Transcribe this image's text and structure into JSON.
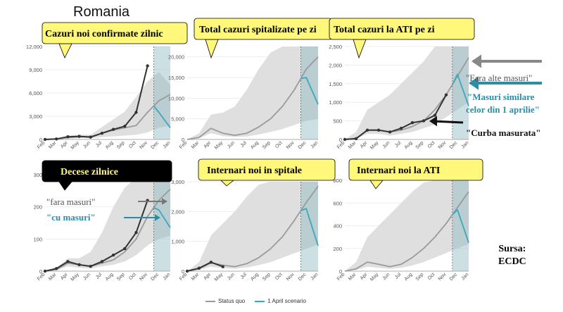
{
  "country_title": "Romania",
  "months": [
    "Feb",
    "Mar",
    "Apr",
    "May",
    "Jun",
    "Jul",
    "Aug",
    "Sep",
    "Oct",
    "Nov",
    "Dec",
    "Jan"
  ],
  "colors": {
    "status_quo": "#9a9a9a",
    "april_scenario": "#3aa9bf",
    "observed": "#222222",
    "band": "#d9d9d9",
    "callout_fill": "#fff87a"
  },
  "legend": {
    "status_quo": "Status quo",
    "april_scenario": "1 April scenario"
  },
  "source": {
    "line1": "Sursa:",
    "line2": "ECDC"
  },
  "notes": {
    "no_measures": "\"Fara alte masuri\"",
    "april_measures_1": "\"Masuri similare",
    "april_measures_2": "celor din 1 aprilie\"",
    "measured_curve": "\"Curba masurata\"",
    "no_measures_deaths": "\"fara masuri\"",
    "with_measures": "\"cu masuri\""
  },
  "chart_data": [
    {
      "id": "cases",
      "type": "line",
      "title": "Cazuri noi confirmate zilnic",
      "ylim": [
        0,
        12000
      ],
      "yticks": [
        0,
        3000,
        6000,
        9000,
        12000
      ],
      "yticklabels": [
        "0",
        "3,000",
        "6,000",
        "9,000",
        "12,000"
      ],
      "x": [
        "Feb",
        "Mar",
        "Apr",
        "May",
        "Jun",
        "Jul",
        "Aug",
        "Sep",
        "Oct",
        "Nov",
        "Dec",
        "Jan"
      ],
      "series": [
        {
          "key": "status_quo",
          "values": [
            0,
            50,
            250,
            350,
            350,
            800,
            1200,
            1500,
            1800,
            3500,
            5000,
            5800
          ]
        },
        {
          "key": "april_scenario",
          "values": [
            null,
            null,
            null,
            null,
            null,
            null,
            null,
            null,
            null,
            null,
            3500,
            1500
          ]
        },
        {
          "key": "observed",
          "values": [
            0,
            60,
            350,
            400,
            300,
            800,
            1300,
            1700,
            3500,
            9500,
            null,
            null
          ]
        }
      ],
      "band": {
        "lower": [
          0,
          0,
          100,
          150,
          150,
          300,
          400,
          500,
          600,
          900,
          1500,
          1800
        ],
        "upper": [
          0,
          100,
          500,
          600,
          600,
          1600,
          2600,
          3600,
          5500,
          7500,
          8700,
          7000
        ]
      },
      "scenario_start": "Nov"
    },
    {
      "id": "hosp",
      "type": "line",
      "title": "Total cazuri spitalizate pe zi",
      "ylim": [
        0,
        22500
      ],
      "yticks": [
        0,
        5000,
        10000,
        15000,
        20000
      ],
      "yticklabels": [
        "0",
        "5,000",
        "10,000",
        "15,000",
        "20,000"
      ],
      "x": [
        "Feb",
        "Mar",
        "Apr",
        "May",
        "Jun",
        "Jul",
        "Aug",
        "Sep",
        "Oct",
        "Nov",
        "Dec",
        "Jan"
      ],
      "series": [
        {
          "key": "status_quo",
          "values": [
            0,
            500,
            2700,
            1500,
            1000,
            1500,
            3000,
            5000,
            8000,
            12000,
            17000,
            20000
          ]
        },
        {
          "key": "april_scenario",
          "values": [
            null,
            null,
            null,
            null,
            null,
            null,
            null,
            null,
            null,
            null,
            15000,
            8500
          ]
        }
      ],
      "band": {
        "lower": [
          0,
          300,
          1500,
          800,
          600,
          700,
          1200,
          1800,
          2500,
          3500,
          4500,
          5000
        ],
        "upper": [
          0,
          1500,
          6000,
          6500,
          8000,
          12000,
          17000,
          21000,
          22500,
          22500,
          22500,
          22500
        ]
      },
      "scenario_start": "Nov"
    },
    {
      "id": "icu",
      "type": "line",
      "title": "Total cazuri la ATI pe zi",
      "ylim": [
        0,
        2500
      ],
      "yticks": [
        0,
        500,
        1000,
        1500,
        2000,
        2500
      ],
      "yticklabels": [
        "0",
        "500",
        "1,000",
        "1,500",
        "2,000",
        "2,500"
      ],
      "x": [
        "Feb",
        "Mar",
        "Apr",
        "May",
        "Jun",
        "Jul",
        "Aug",
        "Sep",
        "Oct",
        "Nov",
        "Dec",
        "Jan"
      ],
      "series": [
        {
          "key": "status_quo",
          "values": [
            0,
            30,
            250,
            250,
            200,
            250,
            350,
            500,
            800,
            1200,
            1700,
            2200
          ]
        },
        {
          "key": "april_scenario",
          "values": [
            null,
            null,
            null,
            null,
            null,
            null,
            null,
            null,
            null,
            null,
            1750,
            900
          ]
        },
        {
          "key": "observed",
          "values": [
            0,
            20,
            250,
            250,
            200,
            300,
            450,
            500,
            650,
            1200,
            null,
            null
          ]
        }
      ],
      "band": {
        "lower": [
          0,
          20,
          150,
          150,
          100,
          150,
          200,
          300,
          400,
          600,
          800,
          1000
        ],
        "upper": [
          0,
          200,
          800,
          1000,
          1200,
          1500,
          1800,
          2100,
          2500,
          2500,
          2500,
          2500
        ]
      },
      "scenario_start": "Nov"
    },
    {
      "id": "deaths",
      "type": "line",
      "title": "Decese zilnice",
      "ylim": [
        0,
        300
      ],
      "yticks": [
        0,
        100,
        200,
        300
      ],
      "yticklabels": [
        "0",
        "100",
        "200",
        "300"
      ],
      "x": [
        "Feb",
        "Mar",
        "Apr",
        "May",
        "Jun",
        "Jul",
        "Aug",
        "Sep",
        "Oct",
        "Nov",
        "Dec",
        "Jan"
      ],
      "series": [
        {
          "key": "status_quo",
          "values": [
            0,
            5,
            25,
            20,
            15,
            25,
            35,
            60,
            100,
            170,
            220,
            255
          ]
        },
        {
          "key": "april_scenario",
          "values": [
            null,
            null,
            null,
            null,
            null,
            null,
            null,
            null,
            null,
            null,
            190,
            135
          ]
        },
        {
          "key": "observed",
          "values": [
            0,
            8,
            30,
            20,
            15,
            30,
            50,
            70,
            120,
            220,
            null,
            null
          ]
        }
      ],
      "band": {
        "lower": [
          0,
          3,
          15,
          10,
          8,
          15,
          20,
          30,
          50,
          80,
          100,
          110
        ],
        "upper": [
          0,
          10,
          40,
          40,
          60,
          120,
          200,
          260,
          290,
          300,
          300,
          300
        ]
      },
      "scenario_start": "Nov"
    },
    {
      "id": "new_hosp",
      "type": "line",
      "title": "Internari noi in spitale",
      "ylim": [
        0,
        3000
      ],
      "yticks": [
        0,
        1000,
        2000,
        3000
      ],
      "yticklabels": [
        "0",
        "1,000",
        "2,000",
        "3,000"
      ],
      "x": [
        "Feb",
        "Mar",
        "Apr",
        "May",
        "Jun",
        "Jul",
        "Aug",
        "Sep",
        "Oct",
        "Nov",
        "Dec",
        "Jan"
      ],
      "series": [
        {
          "key": "status_quo",
          "values": [
            0,
            80,
            280,
            200,
            150,
            250,
            450,
            750,
            1150,
            1700,
            2300,
            2850
          ]
        },
        {
          "key": "april_scenario",
          "values": [
            null,
            null,
            null,
            null,
            null,
            null,
            null,
            null,
            null,
            null,
            2100,
            850
          ]
        },
        {
          "key": "observed",
          "values": [
            0,
            100,
            300,
            150,
            null,
            null,
            null,
            null,
            null,
            null,
            null,
            null
          ]
        }
      ],
      "band": {
        "lower": [
          0,
          40,
          150,
          100,
          80,
          120,
          200,
          300,
          450,
          600,
          750,
          900
        ],
        "upper": [
          0,
          300,
          1200,
          1600,
          2000,
          2500,
          2900,
          3000,
          3000,
          3000,
          3000,
          3000
        ]
      },
      "scenario_start": "Nov"
    },
    {
      "id": "new_icu",
      "type": "line",
      "title": "Internari noi la ATI",
      "ylim": [
        0,
        800
      ],
      "yticks": [
        0,
        200,
        400,
        600,
        800
      ],
      "yticklabels": [
        "0",
        "200",
        "400",
        "600",
        "800"
      ],
      "x": [
        "Feb",
        "Mar",
        "Apr",
        "May",
        "Jun",
        "Jul",
        "Aug",
        "Sep",
        "Oct",
        "Nov",
        "Dec",
        "Jan"
      ],
      "series": [
        {
          "key": "status_quo",
          "values": [
            0,
            20,
            80,
            60,
            40,
            60,
            120,
            200,
            300,
            420,
            560,
            700
          ]
        },
        {
          "key": "april_scenario",
          "values": [
            null,
            null,
            null,
            null,
            null,
            null,
            null,
            null,
            null,
            null,
            540,
            250
          ]
        }
      ],
      "band": {
        "lower": [
          0,
          10,
          40,
          30,
          20,
          30,
          50,
          80,
          120,
          160,
          200,
          240
        ],
        "upper": [
          0,
          80,
          300,
          400,
          500,
          600,
          700,
          780,
          800,
          800,
          800,
          800
        ]
      },
      "scenario_start": "Nov"
    }
  ]
}
